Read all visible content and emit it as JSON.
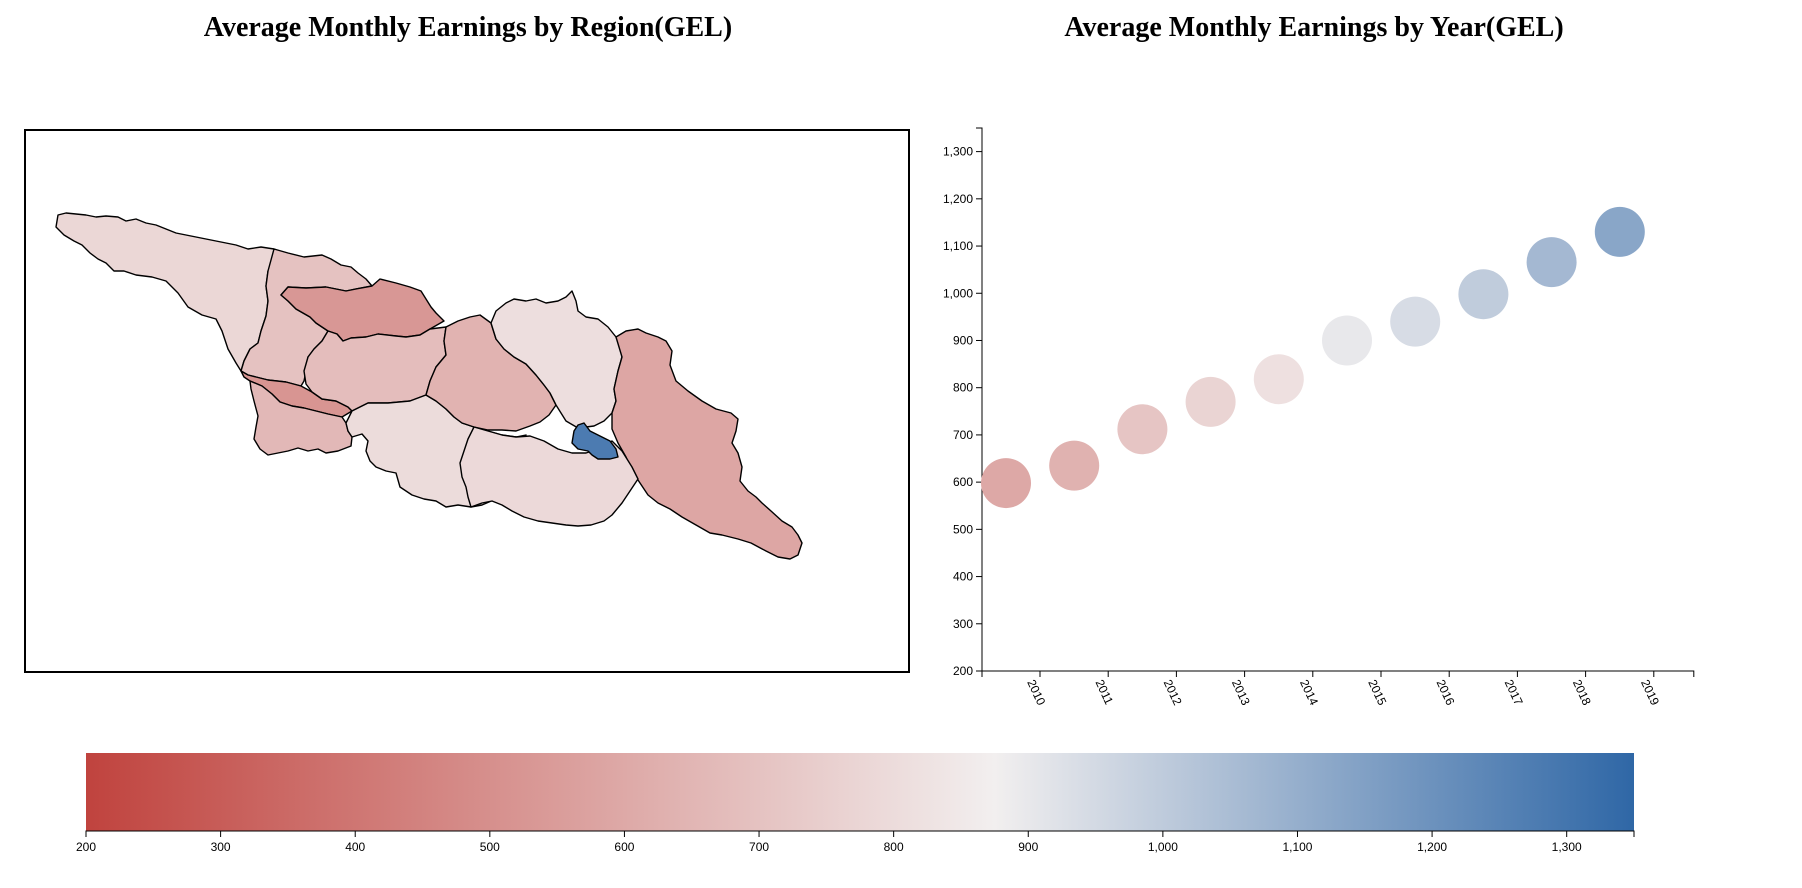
{
  "titles": {
    "map": "Average Monthly Earnings by Region(GEL)",
    "scatter": "Average Monthly Earnings by Year(GEL)"
  },
  "colors": {
    "low": "#c0433e",
    "mid": "#f2efef",
    "high": "#2f67a6",
    "outline": "#000000"
  },
  "chart_data": [
    {
      "type": "map",
      "title": "Average Monthly Earnings by Region(GEL)",
      "color_domain": [
        200,
        1350
      ],
      "regions": [
        {
          "value": 780
        },
        {
          "value": 700
        },
        {
          "value": 530
        },
        {
          "value": 520
        },
        {
          "value": 680
        },
        {
          "value": 660
        },
        {
          "value": 800
        },
        {
          "value": 640
        },
        {
          "value": 810
        },
        {
          "value": 590
        },
        {
          "value": 790
        },
        {
          "value": 1280
        }
      ]
    },
    {
      "type": "scatter",
      "title": "Average Monthly Earnings by Year(GEL)",
      "x": [
        "2010",
        "2011",
        "2012",
        "2013",
        "2014",
        "2015",
        "2016",
        "2017",
        "2018",
        "2019"
      ],
      "y": [
        598,
        635,
        712,
        770,
        818,
        900,
        940,
        998,
        1066,
        1130
      ],
      "ylim": [
        200,
        1350
      ],
      "yticks": [
        200,
        300,
        400,
        500,
        600,
        700,
        800,
        900,
        1000,
        1100,
        1200,
        1300
      ],
      "ytick_labels": [
        "200",
        "300",
        "400",
        "500",
        "600",
        "700",
        "800",
        "900",
        "1,000",
        "1,100",
        "1,200",
        "1,300"
      ],
      "grid": false
    },
    {
      "type": "legend",
      "domain": [
        200,
        1350
      ],
      "ticks": [
        200,
        300,
        400,
        500,
        600,
        700,
        800,
        900,
        1000,
        1100,
        1200,
        1300
      ],
      "tick_labels": [
        "200",
        "300",
        "400",
        "500",
        "600",
        "700",
        "800",
        "900",
        "1,000",
        "1,100",
        "1,200",
        "1,300"
      ]
    }
  ]
}
